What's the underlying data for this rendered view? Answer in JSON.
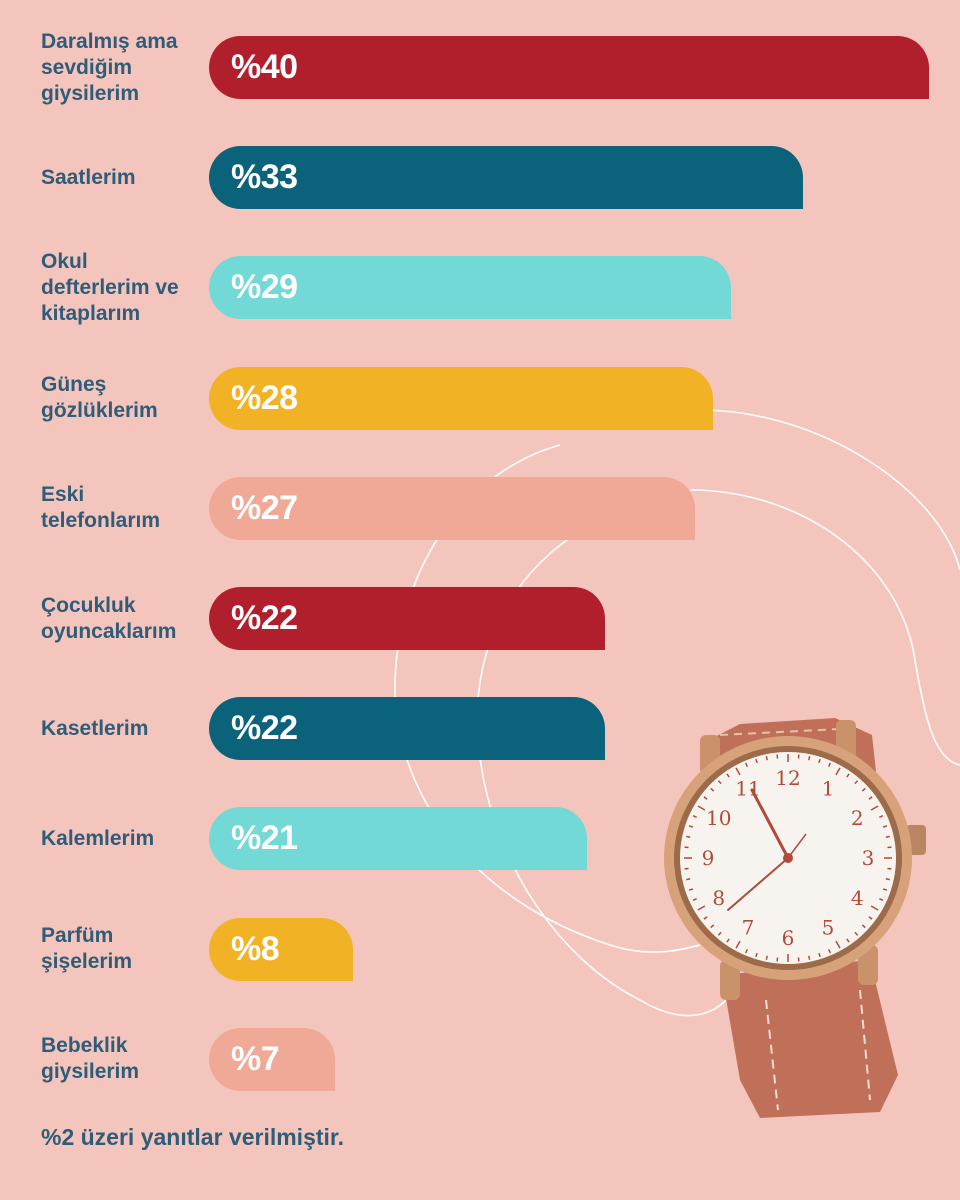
{
  "chart_data": {
    "type": "bar",
    "orientation": "horizontal",
    "categories": [
      "Daralmış ama sevdiğim giysilerim",
      "Saatlerim",
      "Okul defterlerim ve kitaplarım",
      "Güneş gözlüklerim",
      "Eski telefonlarım",
      "Çocukluk oyuncaklarım",
      "Kasetlerim",
      "Kalemlerim",
      "Parfüm şişelerim",
      "Bebeklik giysilerim"
    ],
    "values": [
      40,
      33,
      29,
      28,
      27,
      22,
      22,
      21,
      8,
      7
    ],
    "value_labels": [
      "%40",
      "%33",
      "%29",
      "%28",
      "%27",
      "%22",
      "%22",
      "%21",
      "%8",
      "%7"
    ],
    "bar_colors": [
      "#b01f2b",
      "#0b627b",
      "#72d9d7",
      "#f2b225",
      "#f0a996",
      "#b01f2b",
      "#0b627b",
      "#72d9d7",
      "#f2b225",
      "#f0a996"
    ],
    "xlim": [
      0,
      40
    ],
    "grid": false,
    "legend": "none"
  },
  "footnote": "%2 üzeri yanıtlar verilmiştir.",
  "colors": {
    "background": "#f4c5bd",
    "label_text": "#2f5c78",
    "value_text": "#ffffff"
  },
  "decoration": {
    "image": "wristwatch-illustration",
    "watch_numerals": [
      "12",
      "1",
      "2",
      "3",
      "4",
      "5",
      "6",
      "7",
      "8",
      "9",
      "10",
      "11"
    ]
  }
}
